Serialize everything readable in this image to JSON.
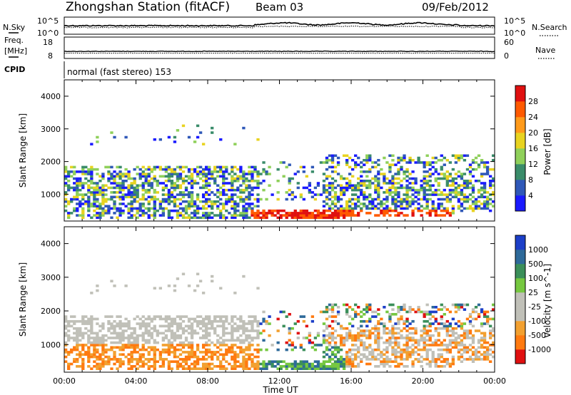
{
  "header": {
    "station": "Zhongshan Station (fitACF)",
    "beam": "Beam 03",
    "date": "09/Feb/2012"
  },
  "params": {
    "nsky_label": "N.Sky",
    "nsearch_label": "N.Search",
    "freq_label_1": "Freq.",
    "freq_label_2": "[MHz]",
    "nave_label": "Nave",
    "cpid_label": "CPID",
    "cpid_text": "normal (fast stereo) 153",
    "noise_ticks": [
      "10^5",
      "10^0"
    ],
    "freq_ticks": [
      "18",
      "8"
    ],
    "nave_ticks": [
      "60",
      "0"
    ]
  },
  "chart_data": [
    {
      "type": "heatmap",
      "name": "power",
      "xlabel": "",
      "ylabel": "Slant Range [km]",
      "y_ticks": [
        "1000",
        "2000",
        "3000",
        "4000"
      ],
      "ylim": [
        180,
        4500
      ],
      "colorbar": {
        "label": "Power [dB]",
        "ticks": [
          "4",
          "8",
          "12",
          "16",
          "20",
          "24",
          "28"
        ],
        "colors": [
          "#1a1aff",
          "#2f58b8",
          "#3a8c6a",
          "#8fd05a",
          "#e8d320",
          "#ff9a1a",
          "#ff5a00",
          "#e01010"
        ]
      }
    },
    {
      "type": "heatmap",
      "name": "velocity",
      "xlabel": "Time UT",
      "ylabel": "Slant Range [km]",
      "y_ticks": [
        "1000",
        "2000",
        "3000",
        "4000"
      ],
      "x_ticks": [
        "00:00",
        "04:00",
        "08:00",
        "12:00",
        "16:00",
        "20:00",
        "00:00"
      ],
      "ylim": [
        180,
        4500
      ],
      "colorbar": {
        "label": "Velocity [m s^-1]",
        "ticks": [
          "1000",
          "500",
          "100",
          "25",
          "-25",
          "-100",
          "-500",
          "-1000"
        ],
        "colors": [
          "#1c3fc8",
          "#2e6a9a",
          "#3b8f5a",
          "#76c840",
          "#c0c0b8",
          "#c0c0b8",
          "#f2a030",
          "#ff7a10",
          "#e01010"
        ]
      }
    }
  ]
}
